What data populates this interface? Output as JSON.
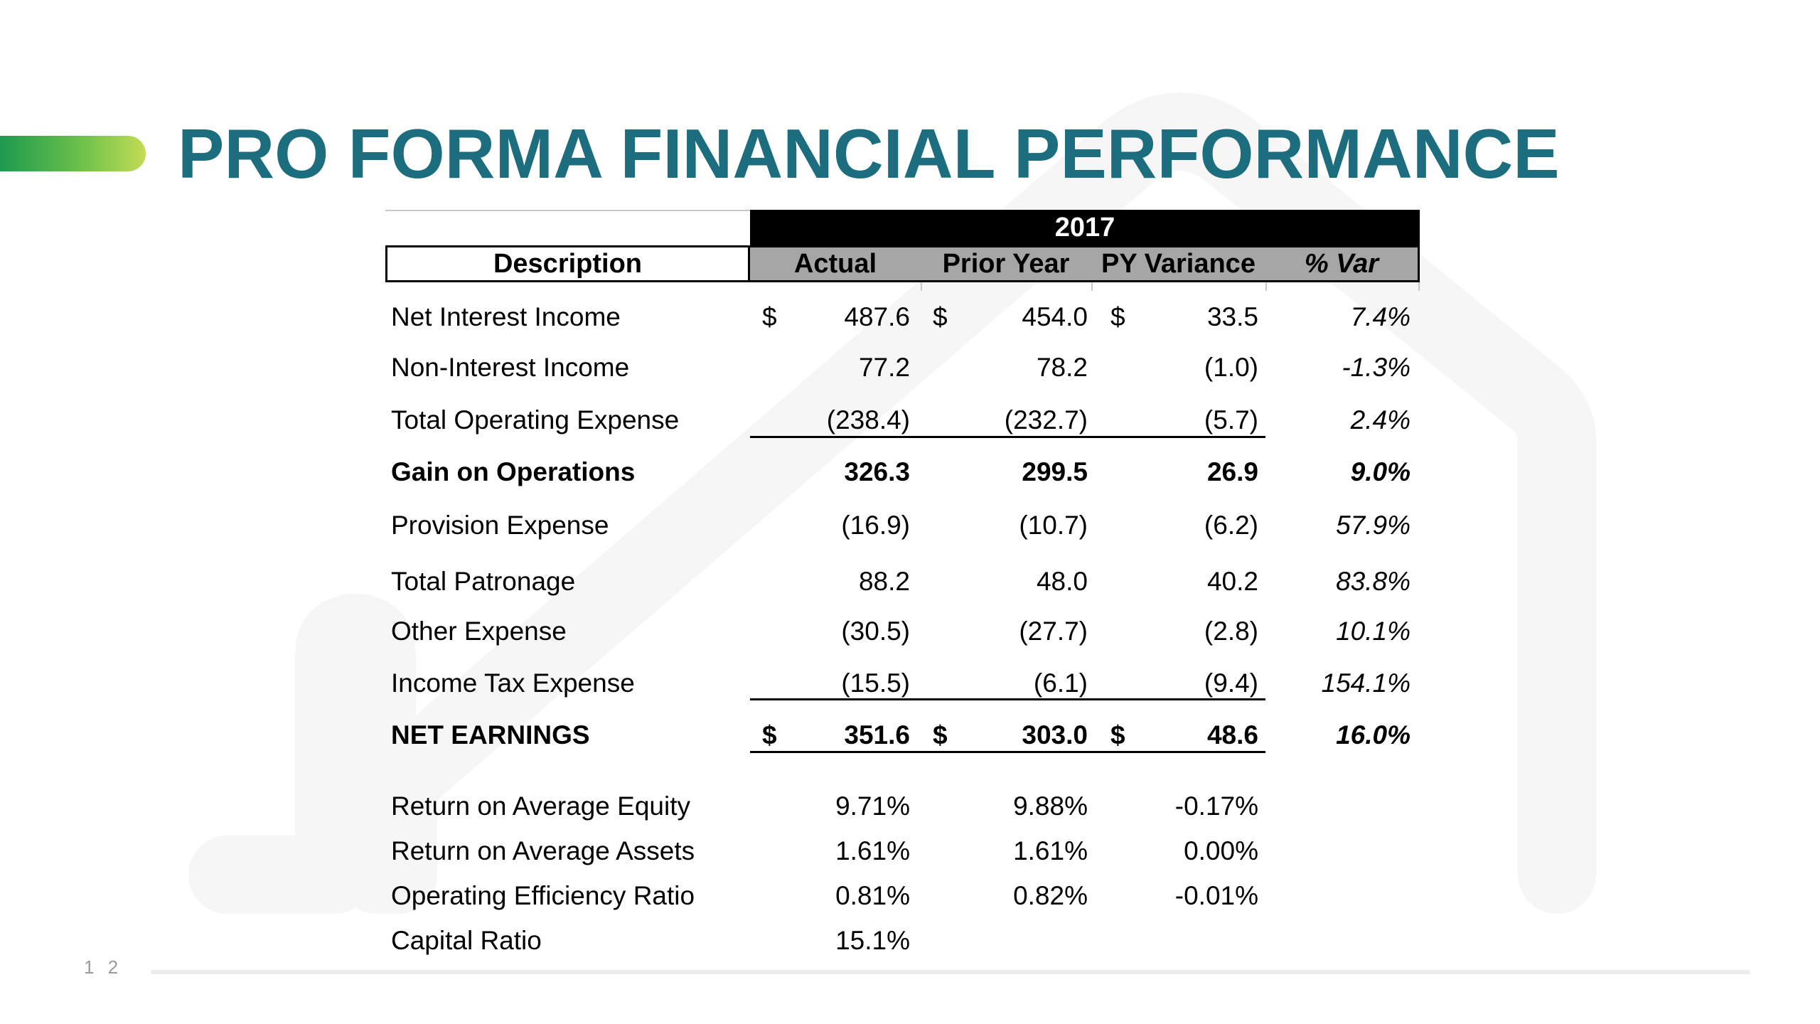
{
  "slide": {
    "title": "PRO FORMA FINANCIAL PERFORMANCE",
    "page_number": "1 2",
    "colors": {
      "title": "#1c6e7e",
      "accent_start": "#1d9a4f",
      "accent_end": "#c3dc55",
      "header_band": "#a6a6a6"
    }
  },
  "table": {
    "year": "2017",
    "headers": {
      "description": "Description",
      "actual": "Actual",
      "prior_year": "Prior Year",
      "py_variance": "PY Variance",
      "pct_var": "% Var"
    },
    "rows": [
      {
        "label": "Net Interest Income",
        "cur": "$",
        "actual": "487.6",
        "prior": "454.0",
        "variance": "33.5",
        "pct": "7.4%"
      },
      {
        "label": "Non-Interest Income",
        "cur": "",
        "actual": "77.2",
        "prior": "78.2",
        "variance": "(1.0)",
        "pct": "-1.3%"
      },
      {
        "label": "Total Operating Expense",
        "cur": "",
        "actual": "(238.4)",
        "prior": "(232.7)",
        "variance": "(5.7)",
        "pct": "2.4%"
      },
      {
        "label": "Gain on Operations",
        "cur": "",
        "actual": "326.3",
        "prior": "299.5",
        "variance": "26.9",
        "pct": "9.0%"
      },
      {
        "label": "Provision Expense",
        "cur": "",
        "actual": "(16.9)",
        "prior": "(10.7)",
        "variance": "(6.2)",
        "pct": "57.9%"
      },
      {
        "label": "Total Patronage",
        "cur": "",
        "actual": "88.2",
        "prior": "48.0",
        "variance": "40.2",
        "pct": "83.8%"
      },
      {
        "label": "Other Expense",
        "cur": "",
        "actual": "(30.5)",
        "prior": "(27.7)",
        "variance": "(2.8)",
        "pct": "10.1%"
      },
      {
        "label": "Income Tax Expense",
        "cur": "",
        "actual": "(15.5)",
        "prior": "(6.1)",
        "variance": "(9.4)",
        "pct": "154.1%"
      },
      {
        "label": "NET EARNINGS",
        "cur": "$",
        "actual": "351.6",
        "prior": "303.0",
        "variance": "48.6",
        "pct": "16.0%"
      }
    ],
    "ratios": [
      {
        "label": "Return on Average Equity",
        "actual": "9.71%",
        "prior": "9.88%",
        "variance": "-0.17%"
      },
      {
        "label": "Return on Average Assets",
        "actual": "1.61%",
        "prior": "1.61%",
        "variance": "0.00%"
      },
      {
        "label": "Operating Efficiency Ratio",
        "actual": "0.81%",
        "prior": "0.82%",
        "variance": "-0.01%"
      },
      {
        "label": "Capital Ratio",
        "actual": "15.1%",
        "prior": "",
        "variance": ""
      }
    ]
  }
}
